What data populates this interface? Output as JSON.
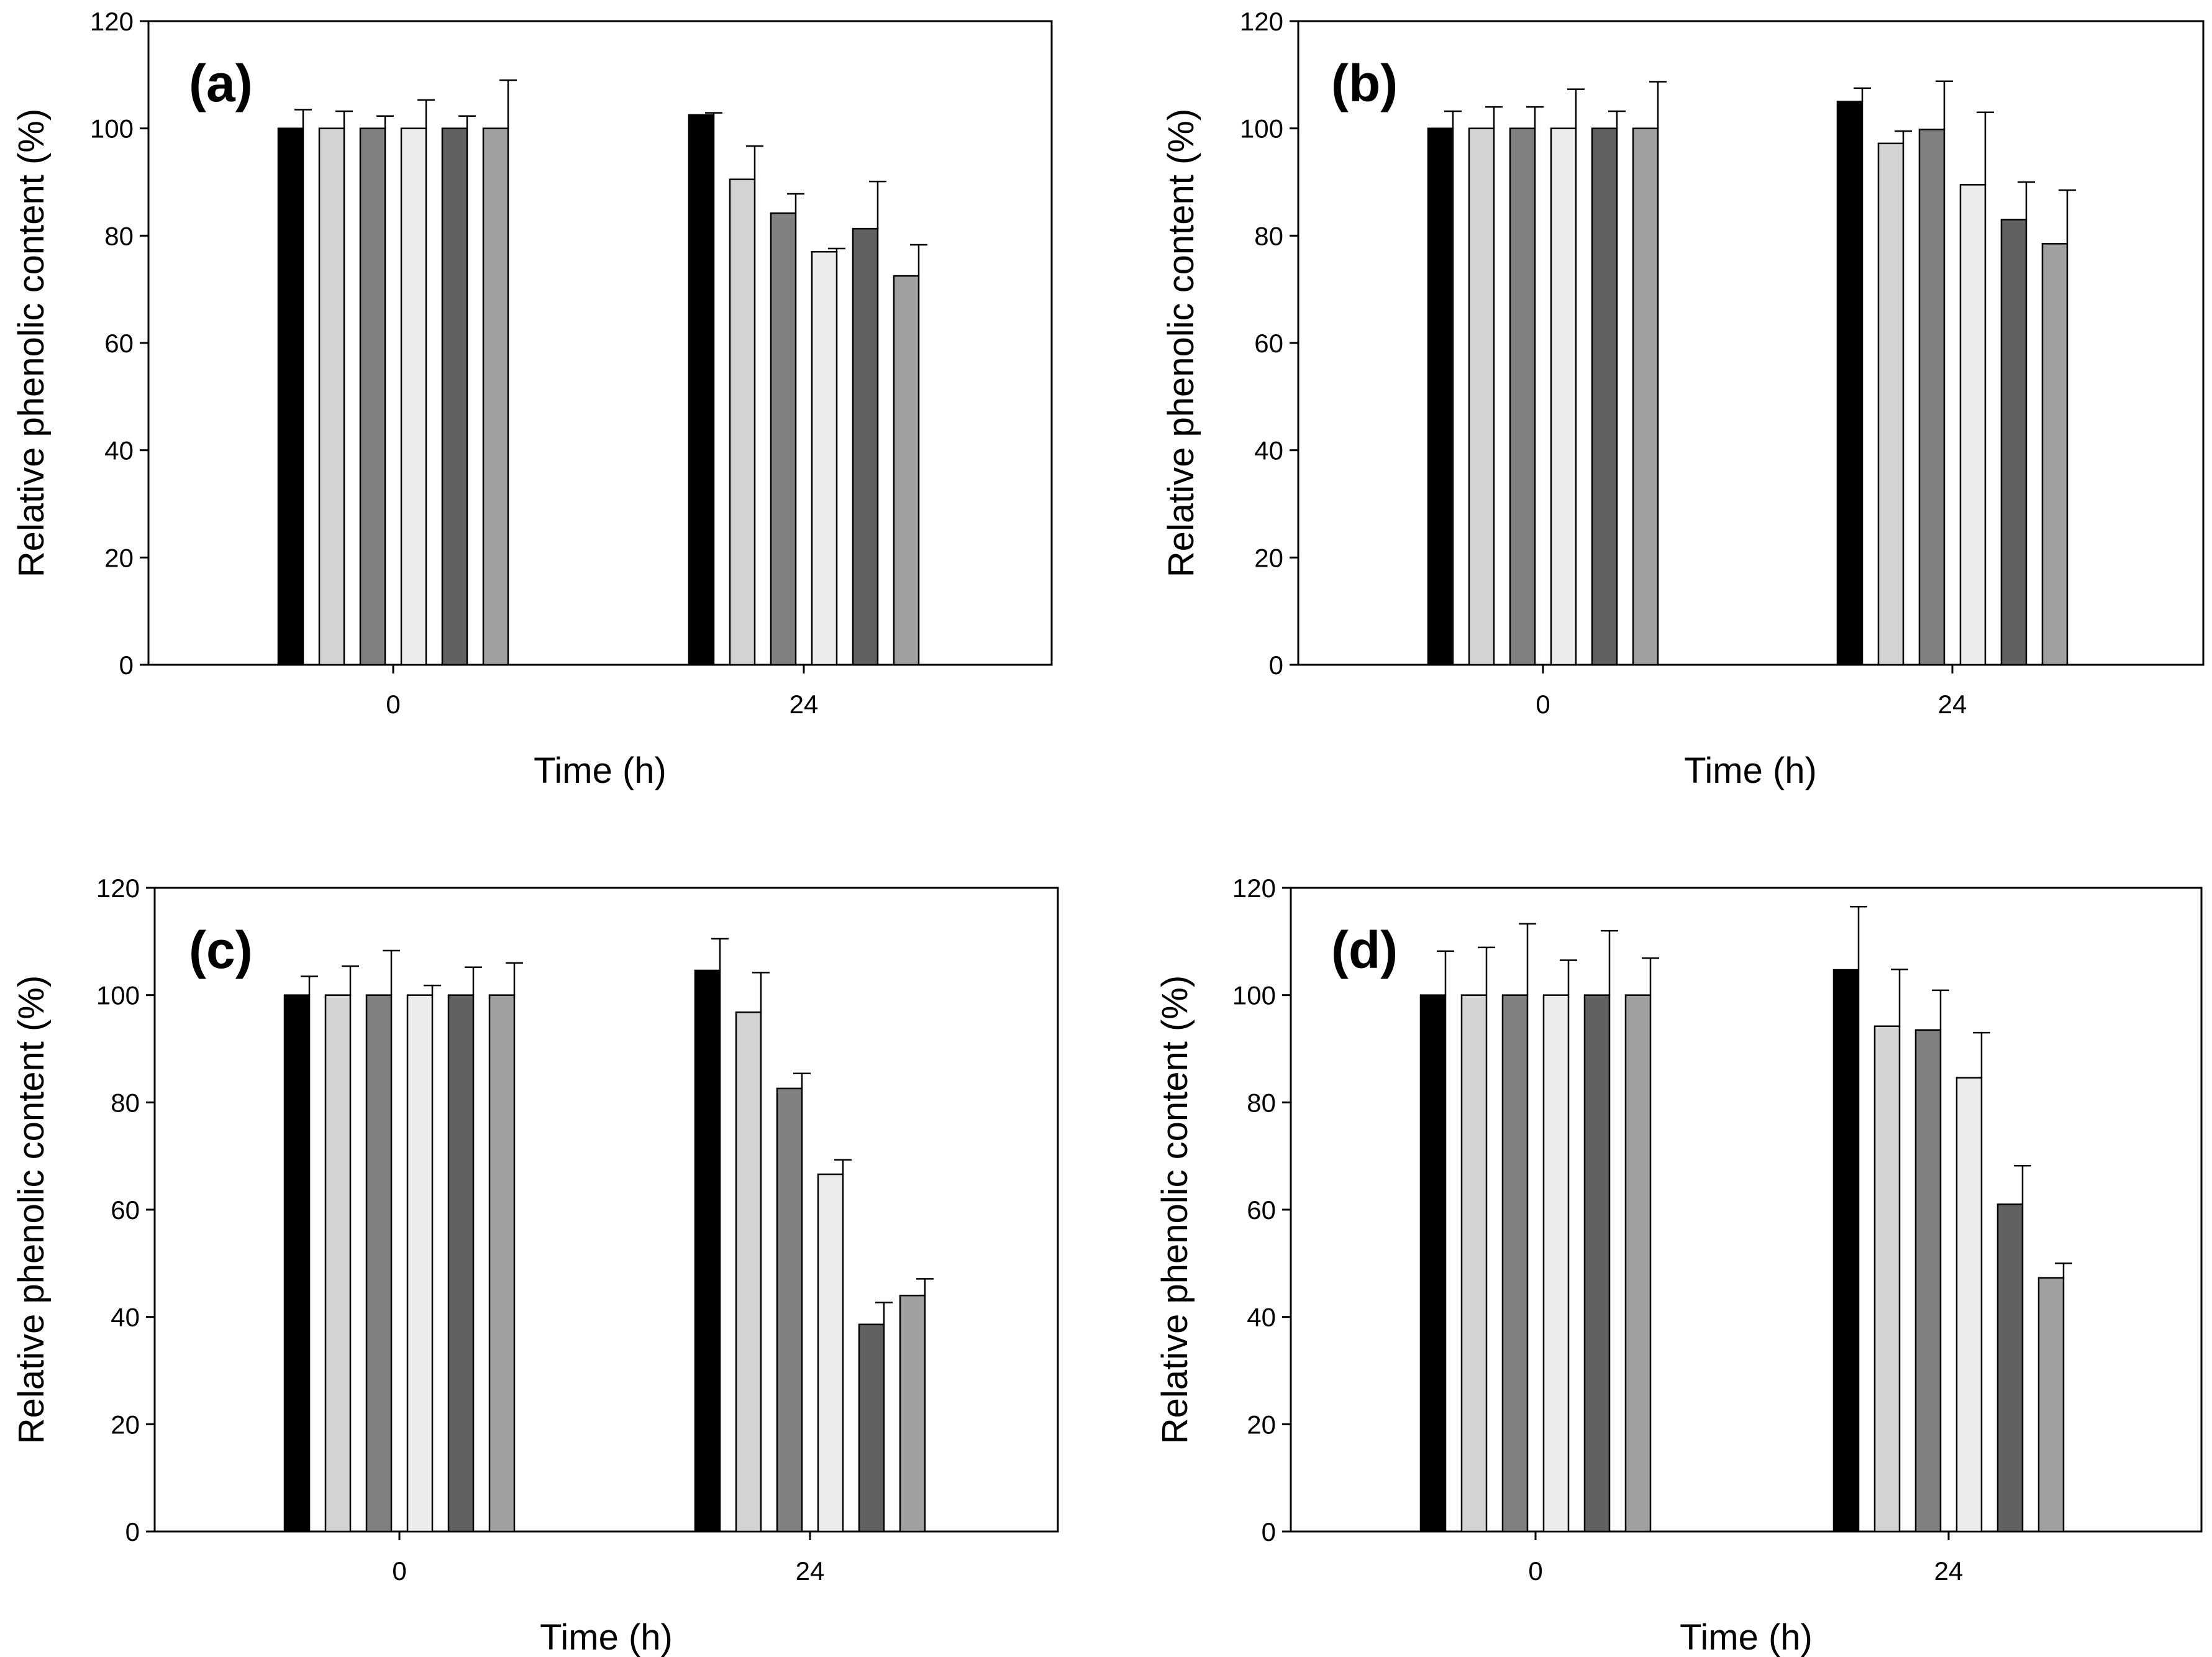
{
  "colors": [
    "#000000",
    "#d3d3d3",
    "#808080",
    "#ececec",
    "#616161",
    "#a0a0a0"
  ],
  "chart_data": [
    {
      "panel_label": "(a)",
      "type": "bar",
      "categories": [
        "0",
        "24"
      ],
      "xlabel": "Time (h)",
      "ylabel": "Relative phenolic content (%)",
      "ylim": [
        0,
        120
      ],
      "yticks": [
        "0",
        "20",
        "40",
        "60",
        "80",
        "100",
        "120"
      ],
      "series": [
        {
          "values": [
            100,
            102.5
          ],
          "errors": [
            3.5,
            0.4
          ]
        },
        {
          "values": [
            100,
            90.5
          ],
          "errors": [
            3.2,
            6.2
          ]
        },
        {
          "values": [
            100,
            84.2
          ],
          "errors": [
            2.3,
            3.6
          ]
        },
        {
          "values": [
            100,
            77.0
          ],
          "errors": [
            5.3,
            0.6
          ]
        },
        {
          "values": [
            100,
            81.3
          ],
          "errors": [
            2.3,
            8.8
          ]
        },
        {
          "values": [
            100,
            72.5
          ],
          "errors": [
            9.0,
            5.8
          ]
        }
      ]
    },
    {
      "panel_label": "(b)",
      "type": "bar",
      "categories": [
        "0",
        "24"
      ],
      "xlabel": "Time (h)",
      "ylabel": "Relative phenolic content (%)",
      "ylim": [
        0,
        120
      ],
      "yticks": [
        "0",
        "20",
        "40",
        "60",
        "80",
        "100",
        "120"
      ],
      "series": [
        {
          "values": [
            100,
            105.0
          ],
          "errors": [
            3.2,
            2.5
          ]
        },
        {
          "values": [
            100,
            97.2
          ],
          "errors": [
            4.0,
            2.3
          ]
        },
        {
          "values": [
            100,
            99.8
          ],
          "errors": [
            4.0,
            9.0
          ]
        },
        {
          "values": [
            100,
            89.5
          ],
          "errors": [
            7.3,
            13.5
          ]
        },
        {
          "values": [
            100,
            83.0
          ],
          "errors": [
            3.2,
            7.0
          ]
        },
        {
          "values": [
            100,
            78.5
          ],
          "errors": [
            8.7,
            10.0
          ]
        }
      ]
    },
    {
      "panel_label": "(c)",
      "type": "bar",
      "categories": [
        "0",
        "24"
      ],
      "xlabel": "Time (h)",
      "ylabel": "Relative phenolic content (%)",
      "ylim": [
        0,
        120
      ],
      "yticks": [
        "0",
        "20",
        "40",
        "60",
        "80",
        "100",
        "120"
      ],
      "series": [
        {
          "values": [
            100,
            104.6
          ],
          "errors": [
            3.5,
            5.9
          ]
        },
        {
          "values": [
            100,
            96.8
          ],
          "errors": [
            5.4,
            7.4
          ]
        },
        {
          "values": [
            100,
            82.6
          ],
          "errors": [
            8.3,
            2.8
          ]
        },
        {
          "values": [
            100,
            66.6
          ],
          "errors": [
            1.8,
            2.7
          ]
        },
        {
          "values": [
            100,
            38.6
          ],
          "errors": [
            5.2,
            4.1
          ]
        },
        {
          "values": [
            100,
            44.0
          ],
          "errors": [
            6.0,
            3.1
          ]
        }
      ]
    },
    {
      "panel_label": "(d)",
      "type": "bar",
      "categories": [
        "0",
        "24"
      ],
      "xlabel": "Time (h)",
      "ylabel": "Relative phenolic content (%)",
      "ylim": [
        0,
        120
      ],
      "yticks": [
        "0",
        "20",
        "40",
        "60",
        "80",
        "100",
        "120"
      ],
      "series": [
        {
          "values": [
            100,
            104.7
          ],
          "errors": [
            8.2,
            11.8
          ]
        },
        {
          "values": [
            100,
            94.2
          ],
          "errors": [
            8.9,
            10.6
          ]
        },
        {
          "values": [
            100,
            93.5
          ],
          "errors": [
            13.3,
            7.4
          ]
        },
        {
          "values": [
            100,
            84.6
          ],
          "errors": [
            6.5,
            8.4
          ]
        },
        {
          "values": [
            100,
            61.0
          ],
          "errors": [
            12.0,
            7.2
          ]
        },
        {
          "values": [
            100,
            47.3
          ],
          "errors": [
            6.9,
            2.7
          ]
        }
      ]
    }
  ]
}
